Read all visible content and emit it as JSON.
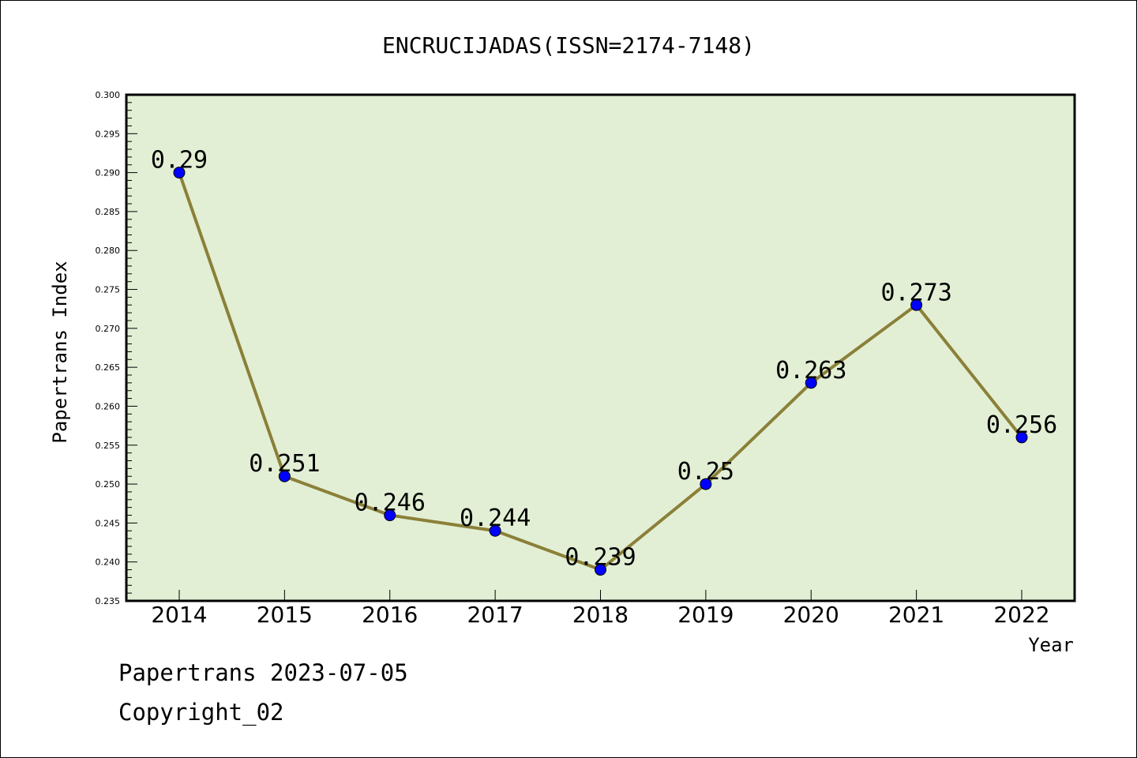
{
  "chart_data": {
    "type": "line",
    "title": "ENCRUCIJADAS(ISSN=2174-7148)",
    "xlabel": "Year",
    "ylabel": "Papertrans Index",
    "categories": [
      "2014",
      "2015",
      "2016",
      "2017",
      "2018",
      "2019",
      "2020",
      "2021",
      "2022"
    ],
    "values": [
      0.29,
      0.251,
      0.246,
      0.244,
      0.239,
      0.25,
      0.263,
      0.273,
      0.256
    ],
    "data_labels": [
      "0.29",
      "0.251",
      "0.246",
      "0.244",
      "0.239",
      "0.25",
      "0.263",
      "0.273",
      "0.256"
    ],
    "ylim": [
      0.235,
      0.3
    ],
    "y_ticks": [
      "0.235",
      "0.240",
      "0.245",
      "0.250",
      "0.255",
      "0.260",
      "0.265",
      "0.270",
      "0.275",
      "0.280",
      "0.285",
      "0.290",
      "0.295",
      "0.300"
    ],
    "grid": false,
    "colors": {
      "plot_background": "#e2efd5",
      "line": "#8b8038",
      "marker": "#0000ff"
    }
  },
  "footer": {
    "source": "Papertrans 2023-07-05",
    "copyright": "Copyright_02"
  }
}
